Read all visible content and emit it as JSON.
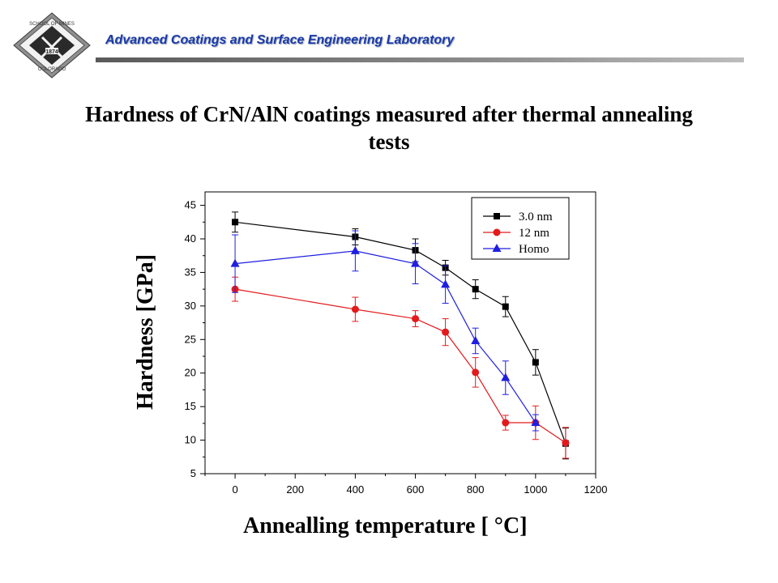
{
  "header": {
    "lab_name": "Advanced Coatings and Surface Engineering Laboratory",
    "logo": {
      "text_top": "SCHOOL OF MINES",
      "text_bottom": "COLORADO",
      "year": "1874"
    }
  },
  "slide": {
    "title": "Hardness of CrN/AlN coatings measured after thermal annealing tests"
  },
  "chart_data": {
    "type": "line",
    "title": "",
    "xlabel": "Annealling temperature [ °C]",
    "ylabel": "Hardness [GPa]",
    "xlim": [
      -100,
      1200
    ],
    "ylim": [
      5,
      47
    ],
    "xticks": [
      0,
      200,
      400,
      600,
      800,
      1000,
      1200
    ],
    "yticks": [
      5,
      10,
      15,
      20,
      25,
      30,
      35,
      40,
      45
    ],
    "grid": false,
    "legend_position": "top-right",
    "series": [
      {
        "name": "3.0 nm",
        "color": "#000000",
        "marker": "square",
        "x": [
          0,
          400,
          600,
          700,
          800,
          900,
          1000,
          1100
        ],
        "y": [
          42.5,
          40.3,
          38.3,
          35.7,
          32.5,
          29.9,
          21.6,
          9.5
        ],
        "err": [
          1.5,
          1.2,
          1.7,
          1.1,
          1.4,
          1.5,
          1.9,
          2.3
        ]
      },
      {
        "name": "12 nm",
        "color": "#e31a1c",
        "marker": "circle",
        "x": [
          0,
          400,
          600,
          700,
          800,
          900,
          1000,
          1100
        ],
        "y": [
          32.5,
          29.5,
          28.1,
          26.1,
          20.1,
          12.6,
          12.6,
          9.6
        ],
        "err": [
          1.8,
          1.8,
          1.2,
          2.0,
          2.2,
          1.1,
          2.5,
          2.3
        ]
      },
      {
        "name": "Homo",
        "color": "#1f1fe0",
        "marker": "triangle",
        "x": [
          0,
          400,
          600,
          700,
          800,
          900,
          1000
        ],
        "y": [
          36.3,
          38.2,
          36.3,
          33.2,
          24.8,
          19.3,
          12.6
        ],
        "err": [
          4.3,
          3.0,
          3.0,
          2.8,
          1.9,
          2.5,
          1.2
        ]
      }
    ]
  }
}
